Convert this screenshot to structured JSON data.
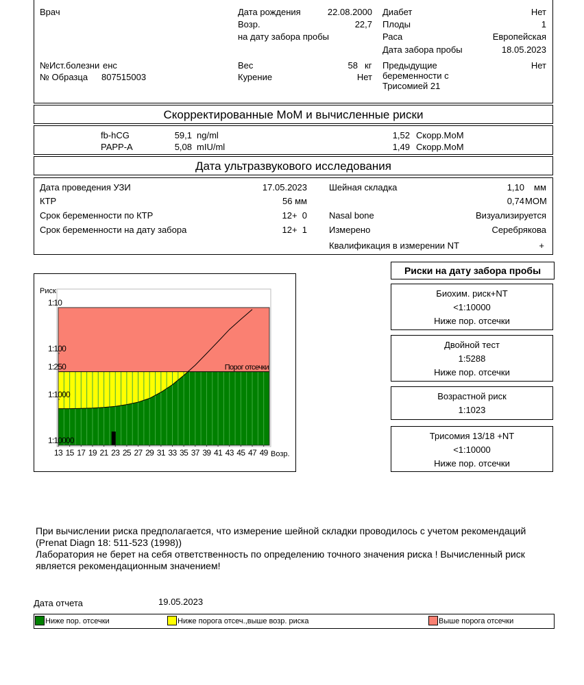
{
  "patient": {
    "doctor_label": "Врач",
    "history_label": "№Ист.болезни",
    "history_value": "енс",
    "sample_label": "№ Образца",
    "sample_value": "807515003",
    "birth_label": "Дата рождения",
    "birth_value": "22.08.2000",
    "age_label": "Возр.",
    "age_value": "22,7",
    "age_note": "на дату забора пробы",
    "weight_label": "Вес",
    "weight_value": "58",
    "weight_unit": "кг",
    "smoking_label": "Курение",
    "smoking_value": "Нет",
    "diabetes_label": "Диабет",
    "diabetes_value": "Нет",
    "fetuses_label": "Плоды",
    "fetuses_value": "1",
    "race_label": "Раса",
    "race_value": "Европейская",
    "sampling_label": "Дата забора пробы",
    "sampling_value": "18.05.2023",
    "prev_label": "Предыдущие беременности с Трисомией 21",
    "prev_value": "Нет"
  },
  "mom": {
    "title": "Скорректированные МоМ и вычисленные риски",
    "rows": [
      {
        "name": "fb-hCG",
        "value": "59,1",
        "unit": "ng/ml",
        "mom": "1,52",
        "mom_unit": "Скорр.МоМ"
      },
      {
        "name": "PAPP-A",
        "value": "5,08",
        "unit": "mIU/ml",
        "mom": "1,49",
        "mom_unit": "Скорр.МоМ"
      }
    ]
  },
  "ultrasound": {
    "title": "Дата ультразвукового исследования",
    "left": [
      {
        "label": "Дата проведения УЗИ",
        "value": "17.05.2023"
      },
      {
        "label": "КТР",
        "value": "56 мм"
      },
      {
        "label": "Срок беременности по КТР",
        "value": "12+  0"
      },
      {
        "label": "Срок беременности на дату забора",
        "value": "12+  1"
      }
    ],
    "right": [
      {
        "label": "Шейная складка",
        "value": "1,10",
        "unit": "мм"
      },
      {
        "value": "0,74",
        "unit": "МОМ"
      },
      {
        "label": "Nasal bone",
        "value": "Визуализируется"
      },
      {
        "label": "Измерено",
        "value": "Серебрякова"
      },
      {
        "label": "Квалификация в измерении NT",
        "value": "+"
      }
    ]
  },
  "chart_data": {
    "type": "risk-area",
    "y_label": "Риск",
    "x_label": "Возр.",
    "xlim": [
      13,
      50
    ],
    "xticks": [
      13,
      15,
      17,
      19,
      21,
      23,
      25,
      27,
      29,
      31,
      33,
      35,
      37,
      39,
      41,
      43,
      45,
      47,
      49
    ],
    "ylim": [
      10,
      10000
    ],
    "y_scale": "log",
    "yticks": [
      {
        "value": 10,
        "label": "1:10"
      },
      {
        "value": 100,
        "label": "1:100"
      },
      {
        "value": 250,
        "label": "1:250"
      },
      {
        "value": 1000,
        "label": "1:1000"
      },
      {
        "value": 10000,
        "label": "1:10000"
      }
    ],
    "threshold": {
      "value": 250,
      "label": "Порог отсечки"
    },
    "series": [
      {
        "color": "#000000",
        "x": [
          13,
          15,
          17,
          19,
          21,
          23,
          25,
          27,
          29,
          31,
          33,
          35,
          37,
          39,
          41,
          43,
          45,
          47
        ],
        "values": [
          1600,
          1600,
          1580,
          1550,
          1500,
          1420,
          1300,
          1150,
          950,
          700,
          480,
          300,
          180,
          100,
          55,
          30,
          18,
          11
        ]
      }
    ],
    "marker_x": 22.7,
    "colors": {
      "below": "#008000",
      "between": "#ffff00",
      "above": "#fa8072"
    }
  },
  "risks": {
    "title": "Риски на дату забора пробы",
    "boxes": [
      {
        "lines": [
          "Биохим. риск+NT",
          "<1:10000",
          "Ниже пор. отсечки"
        ]
      },
      {
        "lines": [
          "Двойной тест",
          "1:5288",
          "Ниже пор. отсечки"
        ]
      },
      {
        "lines": [
          "Возрастной риск",
          "1:1023"
        ]
      },
      {
        "lines": [
          "Трисомия 13/18 +NT",
          "<1:10000",
          "Ниже пор. отсечки"
        ]
      }
    ]
  },
  "notes": [
    "При вычислении риска предполагается, что измерение шейной складки проводилось с учетом рекомендаций (Prenat Diagn 18: 511-523 (1998))",
    "Лаборатория не берет на себя ответственность по определению точного значения риска ! Вычисленный риск является рекомендационным значением!"
  ],
  "report": {
    "label": "Дата отчета",
    "value": "19.05.2023"
  },
  "legend": [
    {
      "label": "Ниже пор. отсечки",
      "color": "#008000"
    },
    {
      "label": "Ниже порога отсеч.,выше возр. риска",
      "color": "#ffff00"
    },
    {
      "label": "Выше порога отсечки",
      "color": "#fa8072"
    }
  ]
}
